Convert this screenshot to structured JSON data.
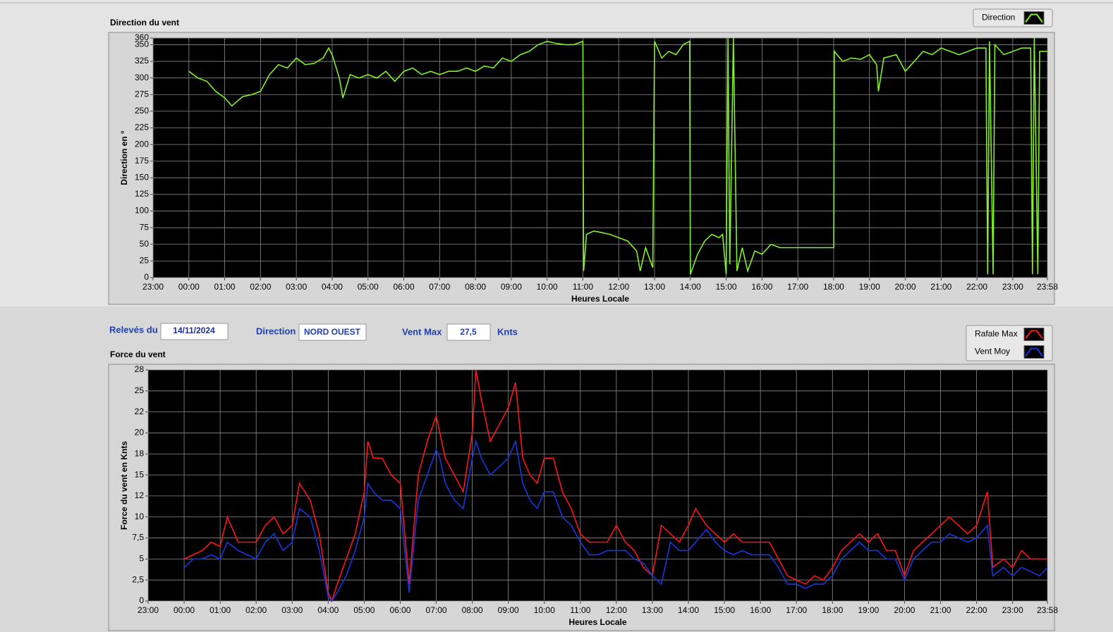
{
  "info": {
    "date_label": "Relevés du",
    "date": "14/11/2024",
    "direction_label": "Direction",
    "direction": "NORD OUEST",
    "max_label": "Vent Max",
    "max": "27,5",
    "unit": "Knts"
  },
  "chart_data": [
    {
      "type": "line",
      "title": "Direction du vent",
      "y_label": "Direction en °",
      "x_label": "Heures Locale",
      "grid": true,
      "xlim": [
        -1,
        23.967
      ],
      "ylim": [
        0,
        360
      ],
      "xticks": [
        {
          "value": -1,
          "label": "23:00"
        },
        {
          "value": 0,
          "label": "00:00"
        },
        {
          "value": 1,
          "label": "01:00"
        },
        {
          "value": 2,
          "label": "02:00"
        },
        {
          "value": 3,
          "label": "03:00"
        },
        {
          "value": 4,
          "label": "04:00"
        },
        {
          "value": 5,
          "label": "05:00"
        },
        {
          "value": 6,
          "label": "06:00"
        },
        {
          "value": 7,
          "label": "07:00"
        },
        {
          "value": 8,
          "label": "08:00"
        },
        {
          "value": 9,
          "label": "09:00"
        },
        {
          "value": 10,
          "label": "10:00"
        },
        {
          "value": 11,
          "label": "11:00"
        },
        {
          "value": 12,
          "label": "12:00"
        },
        {
          "value": 13,
          "label": "13:00"
        },
        {
          "value": 14,
          "label": "14:00"
        },
        {
          "value": 15,
          "label": "15:00"
        },
        {
          "value": 16,
          "label": "16:00"
        },
        {
          "value": 17,
          "label": "17:00"
        },
        {
          "value": 18,
          "label": "18:00"
        },
        {
          "value": 19,
          "label": "19:00"
        },
        {
          "value": 20,
          "label": "20:00"
        },
        {
          "value": 21,
          "label": "21:00"
        },
        {
          "value": 22,
          "label": "22:00"
        },
        {
          "value": 23,
          "label": "23:00"
        },
        {
          "value": 23.967,
          "label": "23:58"
        }
      ],
      "yticks": [
        0,
        25,
        50,
        75,
        100,
        125,
        150,
        175,
        200,
        225,
        250,
        275,
        300,
        325,
        350,
        360
      ],
      "x": [
        0,
        0.25,
        0.5,
        0.75,
        1,
        1.2,
        1.5,
        1.75,
        2,
        2.25,
        2.5,
        2.75,
        3,
        3.25,
        3.5,
        3.75,
        3.9,
        4,
        4.2,
        4.3,
        4.5,
        4.75,
        5,
        5.25,
        5.5,
        5.75,
        6,
        6.25,
        6.5,
        6.75,
        7,
        7.25,
        7.5,
        7.75,
        8,
        8.25,
        8.5,
        8.75,
        9,
        9.25,
        9.5,
        9.75,
        10,
        10.25,
        10.5,
        10.75,
        11,
        11.02,
        11.1,
        11.3,
        11.5,
        11.75,
        12,
        12.25,
        12.5,
        12.6,
        12.75,
        12.95,
        13,
        13.2,
        13.4,
        13.6,
        13.8,
        13.98,
        14,
        14.2,
        14.4,
        14.6,
        14.8,
        14.9,
        15,
        15.05,
        15.1,
        15.2,
        15.3,
        15.45,
        15.6,
        15.8,
        16,
        16.25,
        16.5,
        17,
        17.5,
        18,
        18.02,
        18.25,
        18.5,
        18.75,
        19,
        19.2,
        19.25,
        19.4,
        19.75,
        20,
        20.25,
        20.5,
        20.75,
        21,
        21.25,
        21.5,
        21.75,
        22,
        22.25,
        22.3,
        22.35,
        22.45,
        22.5,
        22.75,
        23,
        23.25,
        23.5,
        23.55,
        23.6,
        23.7,
        23.75,
        23.97
      ],
      "series": [
        {
          "name": "Direction",
          "color": "#84f028",
          "values": [
            310,
            300,
            295,
            280,
            270,
            258,
            272,
            275,
            280,
            305,
            320,
            315,
            330,
            320,
            322,
            330,
            345,
            335,
            300,
            270,
            305,
            300,
            305,
            300,
            310,
            295,
            310,
            315,
            305,
            310,
            305,
            310,
            310,
            315,
            310,
            318,
            315,
            330,
            325,
            335,
            340,
            350,
            355,
            352,
            350,
            350,
            355,
            10,
            65,
            70,
            68,
            65,
            60,
            55,
            40,
            10,
            45,
            15,
            355,
            330,
            340,
            335,
            350,
            355,
            5,
            35,
            55,
            65,
            60,
            65,
            5,
            360,
            20,
            360,
            10,
            45,
            10,
            40,
            35,
            50,
            45,
            45,
            45,
            45,
            340,
            325,
            330,
            328,
            335,
            320,
            280,
            330,
            335,
            310,
            325,
            340,
            335,
            345,
            340,
            335,
            340,
            345,
            345,
            5,
            355,
            5,
            350,
            335,
            340,
            345,
            345,
            5,
            360,
            5,
            340,
            340
          ]
        }
      ]
    },
    {
      "type": "line",
      "title": "Force du vent",
      "y_label": "Force du vent en Knts",
      "x_label": "Heures Locale",
      "grid": true,
      "xlim": [
        -1,
        23.967
      ],
      "ylim": [
        0,
        27.5
      ],
      "xticks": [
        {
          "value": -1,
          "label": "23:00"
        },
        {
          "value": 0,
          "label": "00:00"
        },
        {
          "value": 1,
          "label": "01:00"
        },
        {
          "value": 2,
          "label": "02:00"
        },
        {
          "value": 3,
          "label": "03:00"
        },
        {
          "value": 4,
          "label": "04:00"
        },
        {
          "value": 5,
          "label": "05:00"
        },
        {
          "value": 6,
          "label": "06:00"
        },
        {
          "value": 7,
          "label": "07:00"
        },
        {
          "value": 8,
          "label": "08:00"
        },
        {
          "value": 9,
          "label": "09:00"
        },
        {
          "value": 10,
          "label": "10:00"
        },
        {
          "value": 11,
          "label": "11:00"
        },
        {
          "value": 12,
          "label": "12:00"
        },
        {
          "value": 13,
          "label": "13:00"
        },
        {
          "value": 14,
          "label": "14:00"
        },
        {
          "value": 15,
          "label": "15:00"
        },
        {
          "value": 16,
          "label": "16:00"
        },
        {
          "value": 17,
          "label": "17:00"
        },
        {
          "value": 18,
          "label": "18:00"
        },
        {
          "value": 19,
          "label": "19:00"
        },
        {
          "value": 20,
          "label": "20:00"
        },
        {
          "value": 21,
          "label": "21:00"
        },
        {
          "value": 22,
          "label": "22:00"
        },
        {
          "value": 23,
          "label": "23:00"
        },
        {
          "value": 23.967,
          "label": "23:58"
        }
      ],
      "yticks": [
        0,
        {
          "value": 2.5,
          "label": "2,5"
        },
        5,
        {
          "value": 7.5,
          "label": "7,5"
        },
        10,
        {
          "value": 12.5,
          "label": "12"
        },
        15,
        {
          "value": 17.5,
          "label": "18"
        },
        20,
        {
          "value": 22.5,
          "label": "22"
        },
        25,
        {
          "value": 27.5,
          "label": "28"
        }
      ],
      "x": [
        0,
        0.25,
        0.5,
        0.75,
        1,
        1.2,
        1.5,
        1.75,
        2,
        2.25,
        2.5,
        2.75,
        3,
        3.2,
        3.5,
        3.75,
        4,
        4.1,
        4.25,
        4.5,
        4.75,
        5,
        5.1,
        5.25,
        5.5,
        5.75,
        6,
        6.25,
        6.5,
        6.75,
        7,
        7.1,
        7.25,
        7.5,
        7.75,
        8,
        8.1,
        8.25,
        8.5,
        8.75,
        9,
        9.2,
        9.4,
        9.6,
        9.8,
        10,
        10.25,
        10.5,
        10.75,
        11,
        11.25,
        11.5,
        11.75,
        12,
        12.25,
        12.5,
        12.75,
        13,
        13.25,
        13.5,
        13.75,
        14,
        14.2,
        14.5,
        14.75,
        15,
        15.25,
        15.5,
        15.75,
        16,
        16.25,
        16.5,
        16.75,
        17,
        17.25,
        17.5,
        17.75,
        18,
        18.25,
        18.5,
        18.75,
        19,
        19.25,
        19.5,
        19.75,
        20,
        20.25,
        20.5,
        20.75,
        21,
        21.25,
        21.5,
        21.75,
        22,
        22.3,
        22.45,
        22.75,
        23,
        23.25,
        23.5,
        23.75,
        23.97
      ],
      "series": [
        {
          "name": "Rafale Max",
          "color": "#ff1414",
          "values": [
            5,
            5.5,
            6,
            7,
            6.5,
            10,
            7,
            7,
            7,
            9,
            10,
            8,
            9,
            14,
            12,
            8,
            1,
            0,
            2,
            5,
            8,
            13,
            19,
            17,
            17,
            15,
            14,
            2,
            15,
            19,
            22,
            20,
            17,
            15,
            13,
            20,
            27.5,
            24,
            19,
            21,
            23,
            26,
            17,
            15,
            14,
            17,
            17,
            13,
            11,
            8,
            7,
            7,
            7,
            9,
            7,
            6,
            4,
            3,
            9,
            8,
            7,
            9,
            11,
            9,
            8,
            7,
            8,
            7,
            7,
            7,
            7,
            5,
            3,
            2.5,
            2,
            3,
            2.5,
            4,
            6,
            7,
            8,
            7,
            8,
            6,
            6,
            3,
            6,
            7,
            8,
            9,
            10,
            9,
            8,
            9,
            13,
            4,
            5,
            4,
            6,
            5,
            5,
            5
          ]
        },
        {
          "name": "Vent Moy",
          "color": "#1438e0",
          "values": [
            4,
            5,
            5,
            5.5,
            5,
            7,
            6,
            5.5,
            5,
            7,
            8,
            6,
            7,
            11,
            10,
            6,
            0.5,
            0,
            1,
            3,
            6,
            10,
            14,
            13,
            12,
            12,
            11,
            1,
            12,
            15,
            18,
            17,
            14,
            12,
            11,
            17,
            19,
            17,
            15,
            16,
            17,
            19,
            14,
            12,
            11,
            13,
            13,
            10,
            9,
            7,
            5.5,
            5.5,
            6,
            6,
            6,
            5,
            4.5,
            3,
            2,
            7,
            6,
            6,
            7,
            8.5,
            7,
            6,
            5.5,
            6,
            5.5,
            5.5,
            5.5,
            4,
            2,
            2,
            1.5,
            2,
            2,
            3,
            5,
            6,
            7,
            6,
            6,
            5,
            5,
            2.5,
            5,
            6,
            7,
            7,
            8,
            7.5,
            7,
            7.5,
            9,
            3,
            4,
            3,
            4,
            3.5,
            3,
            4
          ]
        }
      ]
    }
  ]
}
